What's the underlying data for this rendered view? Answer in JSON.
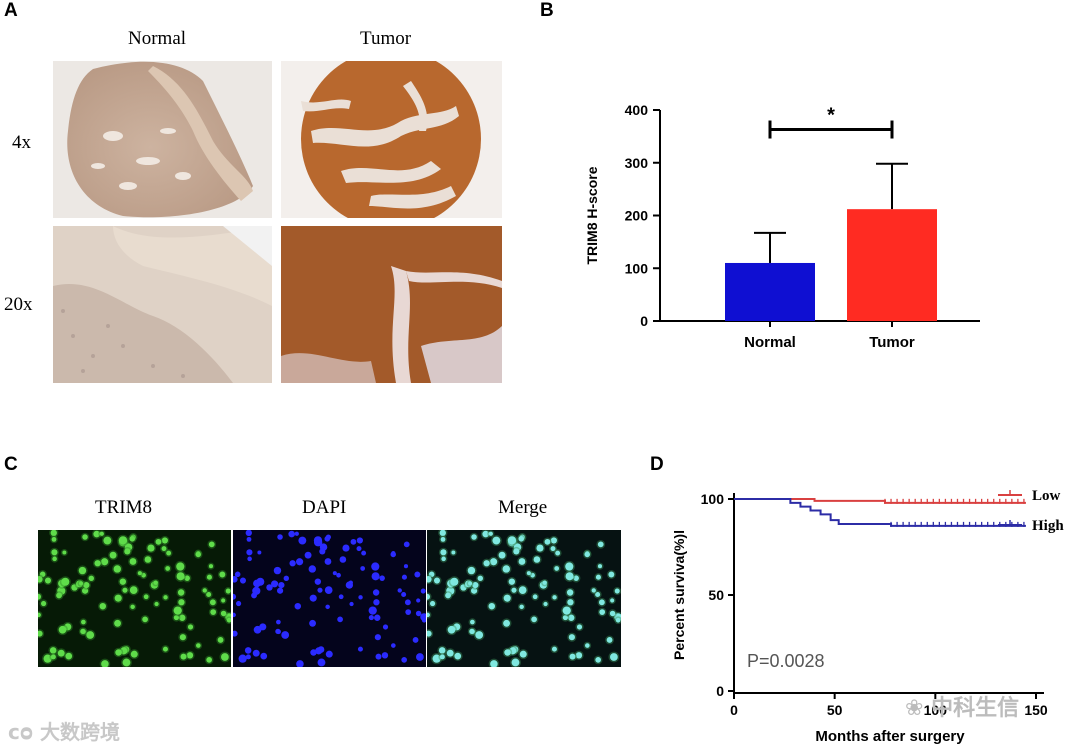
{
  "panels": {
    "A": {
      "letter": "A",
      "col_labels": [
        "Normal",
        "Tumor"
      ],
      "row_labels": [
        "4x",
        "20x"
      ]
    },
    "B": {
      "letter": "B"
    },
    "C": {
      "letter": "C",
      "col_labels": [
        "TRIM8",
        "DAPI",
        "Merge"
      ]
    },
    "D": {
      "letter": "D",
      "pvalue": "P=0.0028"
    }
  },
  "colors": {
    "normal_bar": "#0f0fd2",
    "tumor_bar": "#ff2b22",
    "low_curve": "#d94040",
    "high_curve": "#2c2ca6",
    "ihc_brown": "#b5652d",
    "ihc_light": "#e8d6c8"
  },
  "chart_data": [
    {
      "type": "bar",
      "categories": [
        "Normal",
        "Tumor"
      ],
      "values": [
        110,
        212
      ],
      "error_upper": [
        167,
        298
      ],
      "ylabel": "TRIM8 H-score",
      "ylim": [
        0,
        400
      ],
      "yticks": [
        "0",
        "100",
        "200",
        "300",
        "400"
      ],
      "significance": "*",
      "grid": false
    },
    {
      "type": "line",
      "xlabel": "Months after surgery",
      "ylabel": "Percent surviva(%)l",
      "xlim": [
        0,
        150
      ],
      "ylim": [
        0,
        100
      ],
      "xticks": [
        "0",
        "50",
        "100",
        "150"
      ],
      "yticks": [
        "0",
        "50",
        "100"
      ],
      "legend_position": "top-right",
      "series": [
        {
          "name": "Low",
          "x": [
            0,
            40,
            40,
            75,
            75,
            145
          ],
          "y": [
            100,
            100,
            99,
            99,
            98,
            98
          ]
        },
        {
          "name": "High",
          "x": [
            0,
            22,
            28,
            33,
            38,
            43,
            48,
            52,
            75,
            78,
            145
          ],
          "y": [
            100,
            100,
            98,
            96,
            94,
            92,
            89,
            87,
            87,
            86,
            86
          ]
        }
      ],
      "annotation": "P=0.0028"
    }
  ],
  "watermarks": {
    "left": "大数跨境",
    "right": "中科生信"
  }
}
